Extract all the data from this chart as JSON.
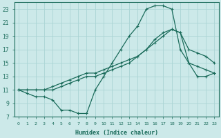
{
  "xlabel": "Humidex (Indice chaleur)",
  "bg_color": "#cce9e9",
  "grid_color": "#aad4d4",
  "line_color": "#1a6b5a",
  "xlim": [
    -0.5,
    23.5
  ],
  "ylim": [
    7,
    24
  ],
  "yticks": [
    7,
    9,
    11,
    13,
    15,
    17,
    19,
    21,
    23
  ],
  "xticks": [
    0,
    1,
    2,
    3,
    4,
    5,
    6,
    7,
    8,
    9,
    10,
    11,
    12,
    13,
    14,
    15,
    16,
    17,
    18,
    19,
    20,
    21,
    22,
    23
  ],
  "line1_x": [
    0,
    1,
    2,
    3,
    4,
    5,
    6,
    7,
    8,
    9,
    10,
    11,
    12,
    13,
    14,
    15,
    16,
    17,
    18,
    19,
    20,
    21,
    22,
    23
  ],
  "line1_y": [
    11,
    10.5,
    10,
    10,
    9.5,
    8,
    8,
    7.5,
    7.5,
    11,
    13,
    15,
    17,
    19,
    20.5,
    23,
    23.5,
    23.5,
    23,
    17,
    15,
    14.5,
    14,
    13.5
  ],
  "line2_x": [
    0,
    1,
    2,
    3,
    4,
    5,
    6,
    7,
    8,
    9,
    10,
    11,
    12,
    13,
    14,
    15,
    16,
    17,
    18,
    19,
    20,
    21,
    22,
    23
  ],
  "line2_y": [
    11,
    11,
    11,
    11,
    11,
    11.5,
    12,
    12.5,
    13,
    13,
    13.5,
    14,
    14.5,
    15,
    16,
    17,
    18,
    19,
    20,
    19.5,
    17,
    16.5,
    16,
    15
  ],
  "line3_x": [
    0,
    1,
    2,
    3,
    4,
    5,
    6,
    7,
    8,
    9,
    10,
    11,
    12,
    13,
    14,
    15,
    16,
    17,
    18,
    19,
    20,
    21,
    22,
    23
  ],
  "line3_y": [
    11,
    11,
    11,
    11,
    11.5,
    12,
    12.5,
    13,
    13.5,
    13.5,
    14,
    14.5,
    15,
    15.5,
    16,
    17,
    18.5,
    19.5,
    20,
    19.5,
    15,
    13,
    13,
    13.5
  ]
}
